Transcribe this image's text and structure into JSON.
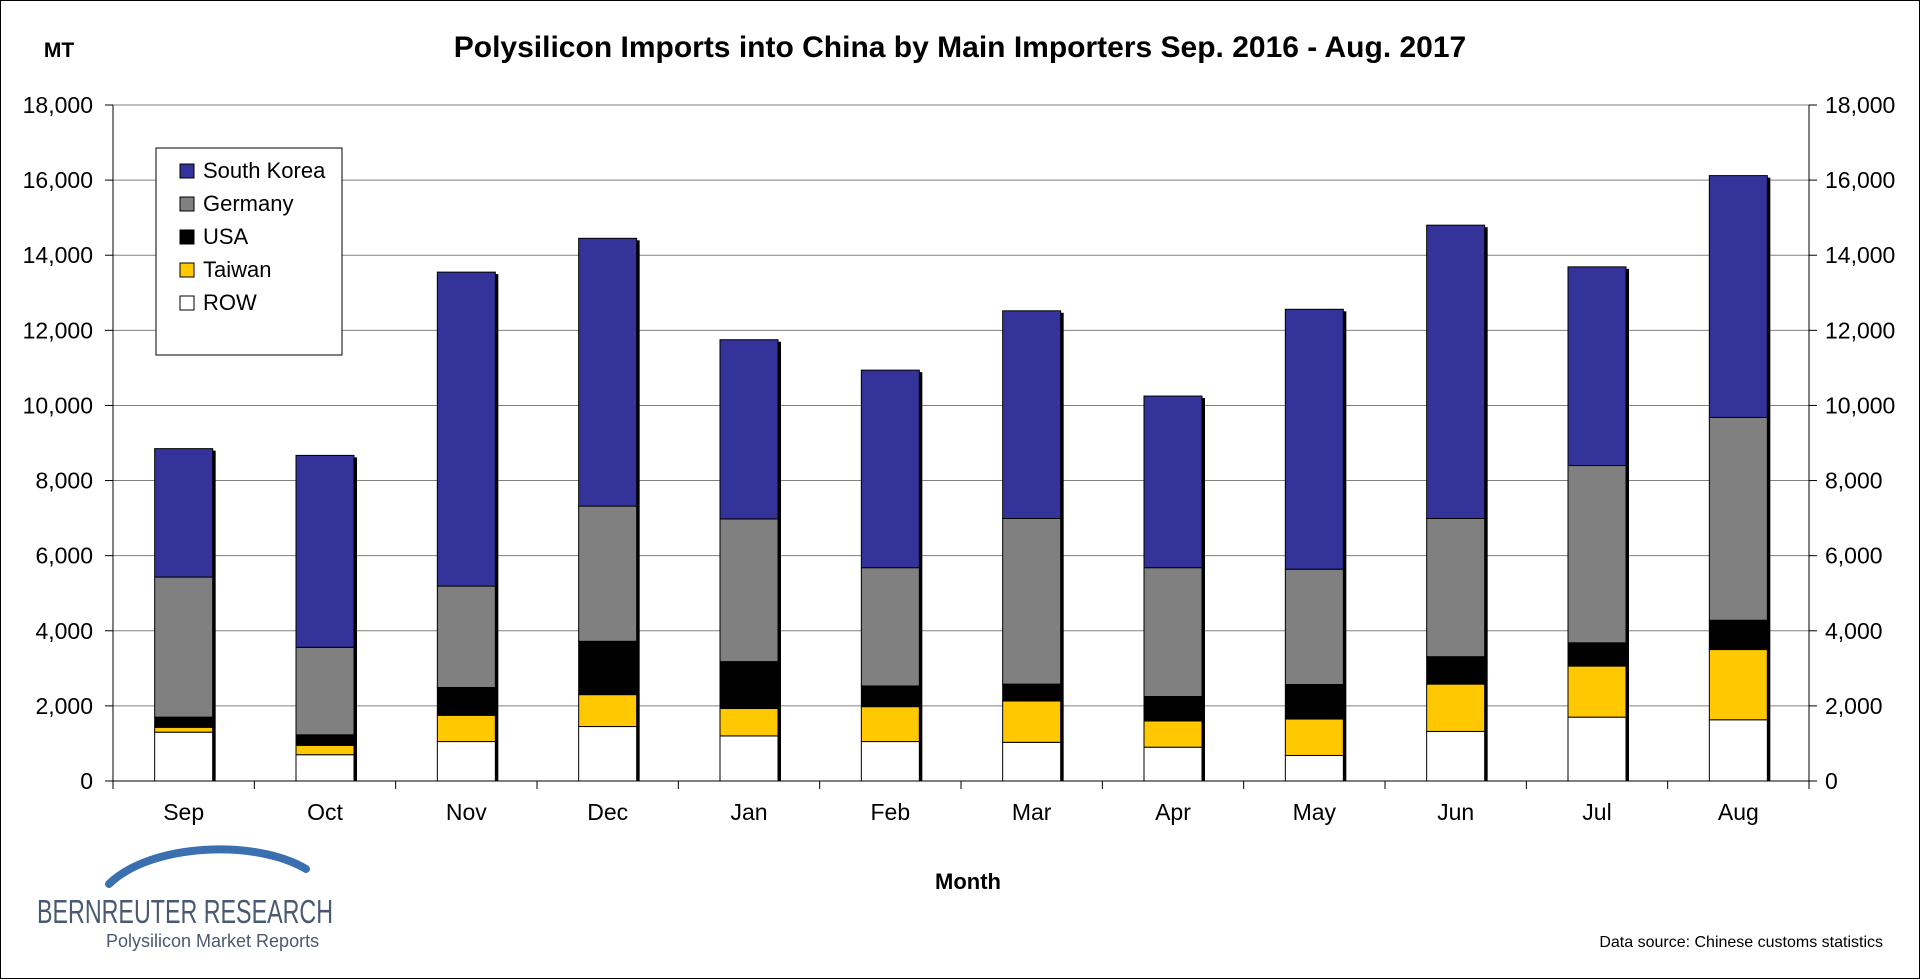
{
  "chart_data": {
    "type": "bar",
    "stacked": true,
    "title": "Polysilicon Imports into China by Main Importers Sep. 2016 - Aug. 2017",
    "unit_label": "MT",
    "xlabel": "Month",
    "ylabel": "",
    "ylim": [
      0,
      18000
    ],
    "yticks": [
      0,
      2000,
      4000,
      6000,
      8000,
      10000,
      12000,
      14000,
      16000,
      18000
    ],
    "ytick_labels": [
      "0",
      "2,000",
      "4,000",
      "6,000",
      "8,000",
      "10,000",
      "12,000",
      "14,000",
      "16,000",
      "18,000"
    ],
    "grid": true,
    "legend_position": "top-left",
    "categories": [
      "Sep",
      "Oct",
      "Nov",
      "Dec",
      "Jan",
      "Feb",
      "Mar",
      "Apr",
      "May",
      "Jun",
      "Jul",
      "Aug"
    ],
    "series": [
      {
        "name": "ROW",
        "color": "#ffffff",
        "values": [
          1300,
          700,
          1050,
          1450,
          1200,
          1050,
          1030,
          900,
          680,
          1320,
          1700,
          1630
        ]
      },
      {
        "name": "Taiwan",
        "color": "#ffc800",
        "values": [
          130,
          250,
          700,
          850,
          730,
          930,
          1100,
          700,
          970,
          1260,
          1360,
          1870
        ]
      },
      {
        "name": "USA",
        "color": "#000000",
        "values": [
          270,
          280,
          740,
          1420,
          1250,
          550,
          450,
          650,
          920,
          730,
          620,
          780
        ]
      },
      {
        "name": "Germany",
        "color": "#808080",
        "values": [
          3730,
          2330,
          2700,
          3600,
          3800,
          3150,
          4410,
          3430,
          3070,
          3680,
          4720,
          5400
        ]
      },
      {
        "name": "South Korea",
        "color": "#333399",
        "values": [
          3420,
          5110,
          8360,
          7130,
          4770,
          5260,
          5530,
          4570,
          6920,
          7810,
          5290,
          6440
        ]
      }
    ],
    "legend_order": [
      "South Korea",
      "Germany",
      "USA",
      "Taiwan",
      "ROW"
    ]
  },
  "source_note": "Data source: Chinese customs statistics",
  "logo": {
    "name": "BERNREUTER RESEARCH",
    "tagline": "Polysilicon Market Reports",
    "color": "#4a5a70",
    "arc_color": "#3a6fb0"
  }
}
